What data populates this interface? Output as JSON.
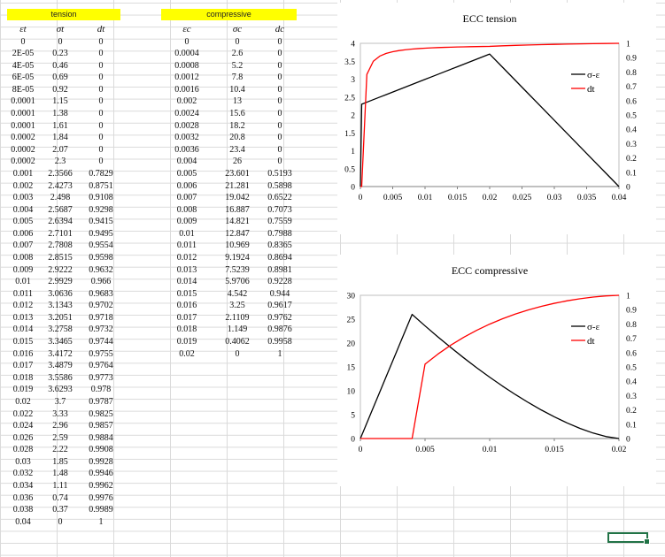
{
  "sheet": {
    "tension_header": "tension",
    "compressive_header": "compressive",
    "tension_symbols": [
      "εt",
      "σt",
      "dt"
    ],
    "compressive_symbols": [
      "εc",
      "σc",
      "dc"
    ],
    "tension_rows": [
      [
        "0",
        "0",
        "0"
      ],
      [
        "2E-05",
        "0.23",
        "0"
      ],
      [
        "4E-05",
        "0.46",
        "0"
      ],
      [
        "6E-05",
        "0.69",
        "0"
      ],
      [
        "8E-05",
        "0.92",
        "0"
      ],
      [
        "0.0001",
        "1.15",
        "0"
      ],
      [
        "0.0001",
        "1.38",
        "0"
      ],
      [
        "0.0001",
        "1.61",
        "0"
      ],
      [
        "0.0002",
        "1.84",
        "0"
      ],
      [
        "0.0002",
        "2.07",
        "0"
      ],
      [
        "0.0002",
        "2.3",
        "0"
      ],
      [
        "0.001",
        "2.3566",
        "0.7829"
      ],
      [
        "0.002",
        "2.4273",
        "0.8751"
      ],
      [
        "0.003",
        "2.498",
        "0.9108"
      ],
      [
        "0.004",
        "2.5687",
        "0.9298"
      ],
      [
        "0.005",
        "2.6394",
        "0.9415"
      ],
      [
        "0.006",
        "2.7101",
        "0.9495"
      ],
      [
        "0.007",
        "2.7808",
        "0.9554"
      ],
      [
        "0.008",
        "2.8515",
        "0.9598"
      ],
      [
        "0.009",
        "2.9222",
        "0.9632"
      ],
      [
        "0.01",
        "2.9929",
        "0.966"
      ],
      [
        "0.011",
        "3.0636",
        "0.9683"
      ],
      [
        "0.012",
        "3.1343",
        "0.9702"
      ],
      [
        "0.013",
        "3.2051",
        "0.9718"
      ],
      [
        "0.014",
        "3.2758",
        "0.9732"
      ],
      [
        "0.015",
        "3.3465",
        "0.9744"
      ],
      [
        "0.016",
        "3.4172",
        "0.9755"
      ],
      [
        "0.017",
        "3.4879",
        "0.9764"
      ],
      [
        "0.018",
        "3.5586",
        "0.9773"
      ],
      [
        "0.019",
        "3.6293",
        "0.978"
      ],
      [
        "0.02",
        "3.7",
        "0.9787"
      ],
      [
        "0.022",
        "3.33",
        "0.9825"
      ],
      [
        "0.024",
        "2.96",
        "0.9857"
      ],
      [
        "0.026",
        "2.59",
        "0.9884"
      ],
      [
        "0.028",
        "2.22",
        "0.9908"
      ],
      [
        "0.03",
        "1.85",
        "0.9928"
      ],
      [
        "0.032",
        "1.48",
        "0.9946"
      ],
      [
        "0.034",
        "1.11",
        "0.9962"
      ],
      [
        "0.036",
        "0.74",
        "0.9976"
      ],
      [
        "0.038",
        "0.37",
        "0.9989"
      ],
      [
        "0.04",
        "0",
        "1"
      ]
    ],
    "compressive_rows": [
      [
        "0",
        "0",
        "0"
      ],
      [
        "0.0004",
        "2.6",
        "0"
      ],
      [
        "0.0008",
        "5.2",
        "0"
      ],
      [
        "0.0012",
        "7.8",
        "0"
      ],
      [
        "0.0016",
        "10.4",
        "0"
      ],
      [
        "0.002",
        "13",
        "0"
      ],
      [
        "0.0024",
        "15.6",
        "0"
      ],
      [
        "0.0028",
        "18.2",
        "0"
      ],
      [
        "0.0032",
        "20.8",
        "0"
      ],
      [
        "0.0036",
        "23.4",
        "0"
      ],
      [
        "0.004",
        "26",
        "0"
      ],
      [
        "0.005",
        "23.601",
        "0.5193"
      ],
      [
        "0.006",
        "21.281",
        "0.5898"
      ],
      [
        "0.007",
        "19.042",
        "0.6522"
      ],
      [
        "0.008",
        "16.887",
        "0.7073"
      ],
      [
        "0.009",
        "14.821",
        "0.7559"
      ],
      [
        "0.01",
        "12.847",
        "0.7988"
      ],
      [
        "0.011",
        "10.969",
        "0.8365"
      ],
      [
        "0.012",
        "9.1924",
        "0.8694"
      ],
      [
        "0.013",
        "7.5239",
        "0.8981"
      ],
      [
        "0.014",
        "5.9706",
        "0.9228"
      ],
      [
        "0.015",
        "4.542",
        "0.944"
      ],
      [
        "0.016",
        "3.25",
        "0.9617"
      ],
      [
        "0.017",
        "2.1109",
        "0.9762"
      ],
      [
        "0.018",
        "1.149",
        "0.9876"
      ],
      [
        "0.019",
        "0.4062",
        "0.9958"
      ],
      [
        "0.02",
        "0",
        "1"
      ]
    ]
  },
  "chart_data": [
    {
      "type": "line",
      "title": "ECC tension",
      "x": [
        0,
        2e-05,
        4e-05,
        6e-05,
        8e-05,
        0.0001,
        0.00012,
        0.00014,
        0.00016,
        0.00018,
        0.0002,
        0.001,
        0.002,
        0.003,
        0.004,
        0.005,
        0.006,
        0.007,
        0.008,
        0.009,
        0.01,
        0.011,
        0.012,
        0.013,
        0.014,
        0.015,
        0.016,
        0.017,
        0.018,
        0.019,
        0.02,
        0.022,
        0.024,
        0.026,
        0.028,
        0.03,
        0.032,
        0.034,
        0.036,
        0.038,
        0.04
      ],
      "series": [
        {
          "name": "σ-ε",
          "axis": "left",
          "color": "#000000",
          "values": [
            0,
            0.23,
            0.46,
            0.69,
            0.92,
            1.15,
            1.38,
            1.61,
            1.84,
            2.07,
            2.3,
            2.3566,
            2.4273,
            2.498,
            2.5687,
            2.6394,
            2.7101,
            2.7808,
            2.8515,
            2.9222,
            2.9929,
            3.0636,
            3.1343,
            3.2051,
            3.2758,
            3.3465,
            3.4172,
            3.4879,
            3.5586,
            3.6293,
            3.7,
            3.33,
            2.96,
            2.59,
            2.22,
            1.85,
            1.48,
            1.11,
            0.74,
            0.37,
            0
          ]
        },
        {
          "name": "dt",
          "axis": "right",
          "color": "#ff0000",
          "values": [
            0,
            0,
            0,
            0,
            0,
            0,
            0,
            0,
            0,
            0,
            0,
            0.7829,
            0.8751,
            0.9108,
            0.9298,
            0.9415,
            0.9495,
            0.9554,
            0.9598,
            0.9632,
            0.966,
            0.9683,
            0.9702,
            0.9718,
            0.9732,
            0.9744,
            0.9755,
            0.9764,
            0.9773,
            0.978,
            0.9787,
            0.9825,
            0.9857,
            0.9884,
            0.9908,
            0.9928,
            0.9946,
            0.9962,
            0.9976,
            0.9989,
            1
          ]
        }
      ],
      "xlim": [
        0,
        0.04
      ],
      "xticks": [
        "0",
        "0.005",
        "0.01",
        "0.015",
        "0.02",
        "0.025",
        "0.03",
        "0.035",
        "0.04"
      ],
      "ylim": [
        0,
        4
      ],
      "yticks": [
        "0",
        "0.5",
        "1",
        "1.5",
        "2",
        "2.5",
        "3",
        "3.5",
        "4"
      ],
      "y2lim": [
        0,
        1
      ],
      "y2ticks": [
        "0",
        "0.1",
        "0.2",
        "0.3",
        "0.4",
        "0.5",
        "0.6",
        "0.7",
        "0.8",
        "0.9",
        "1"
      ],
      "legend": "right"
    },
    {
      "type": "line",
      "title": "ECC compressive",
      "x": [
        0,
        0.0004,
        0.0008,
        0.0012,
        0.0016,
        0.002,
        0.0024,
        0.0028,
        0.0032,
        0.0036,
        0.004,
        0.005,
        0.006,
        0.007,
        0.008,
        0.009,
        0.01,
        0.011,
        0.012,
        0.013,
        0.014,
        0.015,
        0.016,
        0.017,
        0.018,
        0.019,
        0.02
      ],
      "series": [
        {
          "name": "σ-ε",
          "axis": "left",
          "color": "#000000",
          "values": [
            0,
            2.6,
            5.2,
            7.8,
            10.4,
            13,
            15.6,
            18.2,
            20.8,
            23.4,
            26,
            23.601,
            21.281,
            19.042,
            16.887,
            14.821,
            12.847,
            10.969,
            9.1924,
            7.5239,
            5.9706,
            4.542,
            3.25,
            2.1109,
            1.149,
            0.4062,
            0
          ]
        },
        {
          "name": "dt",
          "axis": "right",
          "color": "#ff0000",
          "values": [
            0,
            0,
            0,
            0,
            0,
            0,
            0,
            0,
            0,
            0,
            0,
            0.5193,
            0.5898,
            0.6522,
            0.7073,
            0.7559,
            0.7988,
            0.8365,
            0.8694,
            0.8981,
            0.9228,
            0.944,
            0.9617,
            0.9762,
            0.9876,
            0.9958,
            1
          ]
        }
      ],
      "xlim": [
        0,
        0.02
      ],
      "xticks": [
        "0",
        "0.005",
        "0.01",
        "0.015",
        "0.02"
      ],
      "ylim": [
        0,
        30
      ],
      "yticks": [
        "0",
        "5",
        "10",
        "15",
        "20",
        "25",
        "30"
      ],
      "y2lim": [
        0,
        1
      ],
      "y2ticks": [
        "0",
        "0.1",
        "0.2",
        "0.3",
        "0.4",
        "0.5",
        "0.6",
        "0.7",
        "0.8",
        "0.9",
        "1"
      ],
      "legend": "right"
    }
  ]
}
